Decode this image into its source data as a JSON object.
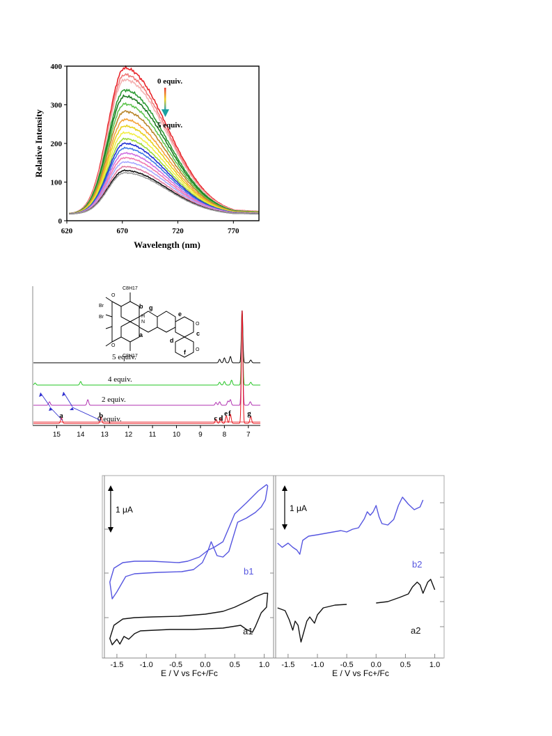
{
  "chart_data": [
    {
      "type": "line",
      "xlabel": "Wavelength (nm)",
      "ylabel": "Relative Intensity",
      "xlim": [
        620,
        793
      ],
      "ylim": [
        0,
        400
      ],
      "xticks": [
        "620",
        "670",
        "720",
        "770"
      ],
      "yticks": [
        "0",
        "100",
        "200",
        "300",
        "400"
      ],
      "annotations": {
        "start": "0 equiv.",
        "end": "5 equiv."
      },
      "peak_nm": 672,
      "series_peaks": [
        395,
        378,
        365,
        338,
        322,
        302,
        283,
        262,
        245,
        228,
        212,
        200,
        188,
        175,
        163,
        152,
        140,
        130,
        124
      ],
      "series_colors": [
        "#e8242a",
        "#f07a7a",
        "#f4b2b2",
        "#2b9a33",
        "#1c7a22",
        "#5fc54e",
        "#b8862a",
        "#f4a23a",
        "#e8d21c",
        "#f2ee46",
        "#9ad836",
        "#1e2ed2",
        "#3c78e6",
        "#d070e0",
        "#f07ab0",
        "#a8a8ff",
        "#e07aa0",
        "#111111",
        "#9a9a9a"
      ]
    },
    {
      "type": "line",
      "xlabel": "",
      "ylabel": "",
      "xlim": [
        16,
        6.5
      ],
      "xticks": [
        "15",
        "14",
        "13",
        "12",
        "11",
        "10",
        "9",
        "8",
        "7"
      ],
      "series": [
        {
          "name": "5 equiv.",
          "color": "#000000"
        },
        {
          "name": "4 equiv.",
          "color": "#22c422"
        },
        {
          "name": "2 equiv.",
          "color": "#b030b0"
        },
        {
          "name": "0 equiv.",
          "color": "#e8141c"
        }
      ],
      "peak_labels": [
        {
          "text": "a",
          "ppm": 14.8
        },
        {
          "text": "b",
          "ppm": 13.15
        },
        {
          "text": "c",
          "ppm": 8.35
        },
        {
          "text": "d",
          "ppm": 8.15
        },
        {
          "text": "e",
          "ppm": 7.92
        },
        {
          "text": "f",
          "ppm": 7.75
        },
        {
          "text": "g",
          "ppm": 6.9
        }
      ],
      "structure_labels": [
        "C8H17",
        "b",
        "H",
        "N",
        "g",
        "e",
        "Br",
        "O",
        "c",
        "a",
        "d",
        "f"
      ]
    },
    {
      "type": "line",
      "xlabel": "E / V vs Fc+/Fc",
      "ylabel": "",
      "xlim": [
        -1.7,
        1.1
      ],
      "xticks": [
        "-1.5",
        "-1.0",
        "-0.5",
        "0.0",
        "0.5",
        "1.0"
      ],
      "scale_label": "1 μA",
      "series": [
        {
          "name": "b1",
          "color": "#5555e0"
        },
        {
          "name": "a1",
          "color": "#111111"
        }
      ]
    },
    {
      "type": "line",
      "xlabel": "E / V vs Fc+/Fc",
      "ylabel": "",
      "xlim": [
        -1.7,
        1.1
      ],
      "xticks": [
        "-1.5",
        "-1.0",
        "-0.5",
        "0.0",
        "0.5",
        "1.0"
      ],
      "scale_label": "1 μA",
      "series": [
        {
          "name": "b2",
          "color": "#5555e0"
        },
        {
          "name": "a2",
          "color": "#111111"
        }
      ]
    }
  ]
}
